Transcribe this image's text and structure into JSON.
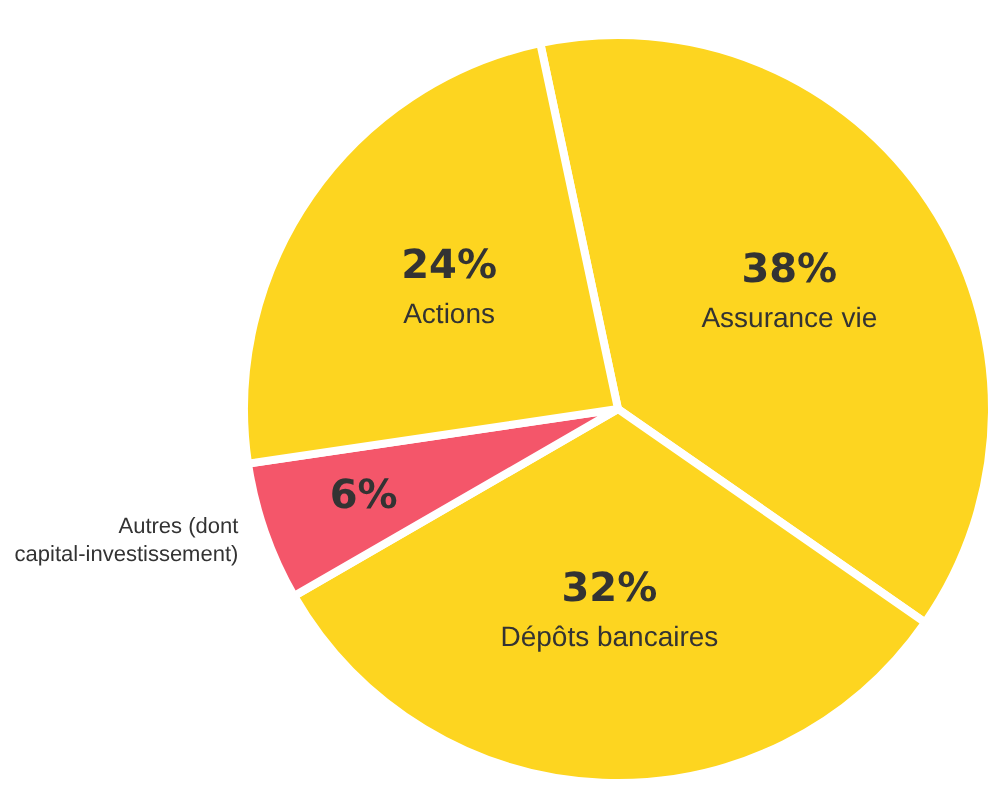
{
  "chart_data": {
    "type": "pie",
    "categories": [
      "Assurance vie",
      "Dépôts bancaires",
      "Autres (dont capital-investissement)",
      "Actions"
    ],
    "values": [
      38,
      32,
      6,
      24
    ],
    "colors": [
      "#fdd520",
      "#fdd520",
      "#f4566a",
      "#fdd520"
    ],
    "value_labels": [
      "38%",
      "32%",
      "6%",
      "24%"
    ],
    "legend": false
  }
}
